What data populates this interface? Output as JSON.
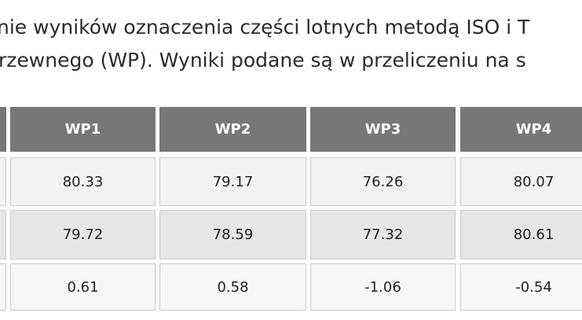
{
  "intro": {
    "lines": [
      "nie wyników oznaczenia części lotnych metodą ISO i T",
      "rzewnego (WP). Wyniki podane są w przeliczeniu na s"
    ]
  },
  "table": {
    "header": [
      "WP1",
      "WP2",
      "WP3",
      "WP4"
    ],
    "rows": [
      [
        "80.33",
        "79.17",
        "76.26",
        "80.07"
      ],
      [
        "79.72",
        "78.59",
        "77.32",
        "80.61"
      ],
      [
        "0.61",
        "0.58",
        "-1.06",
        "-0.54"
      ]
    ]
  }
}
